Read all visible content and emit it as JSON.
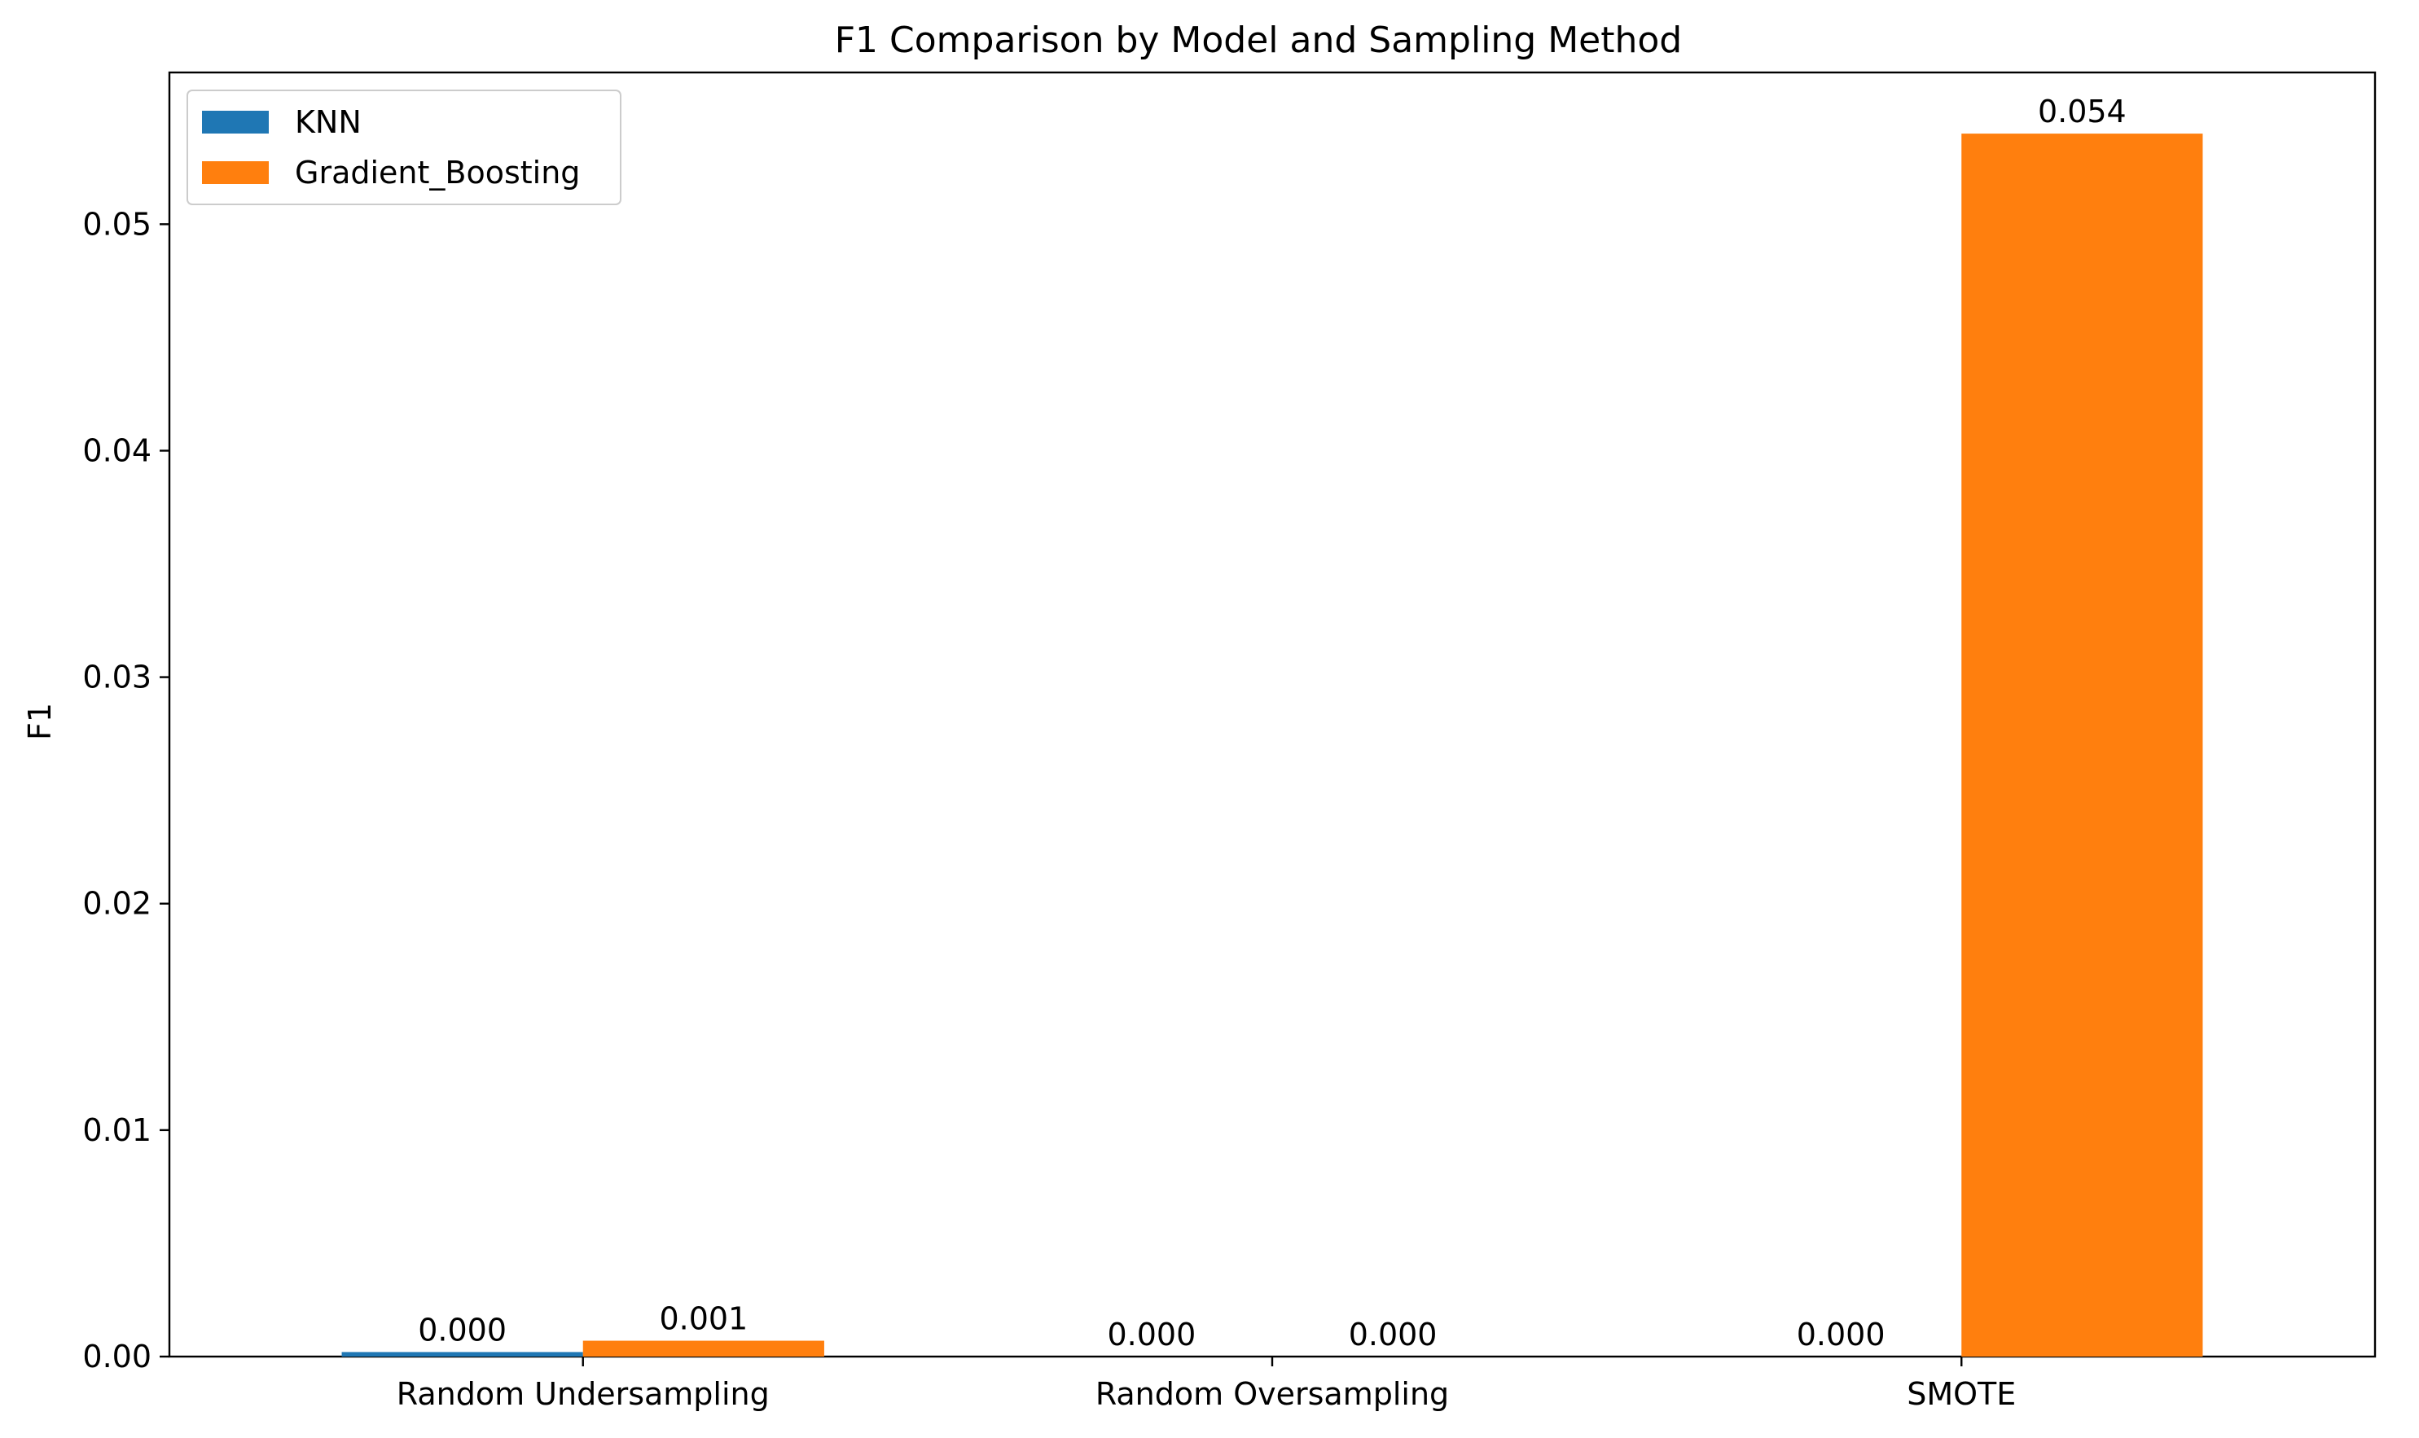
{
  "chart_data": {
    "type": "bar",
    "title": "F1 Comparison by Model and Sampling Method",
    "xlabel": "",
    "ylabel": "F1",
    "categories": [
      "Random Undersampling",
      "Random Oversampling",
      "SMOTE"
    ],
    "series": [
      {
        "name": "KNN",
        "color": "#1f77b4",
        "values": [
          0.0002,
          0.0,
          0.0
        ],
        "labels": [
          "0.000",
          "0.000",
          "0.000"
        ]
      },
      {
        "name": "Gradient_Boosting",
        "color": "#ff7f0e",
        "values": [
          0.0007,
          0.0,
          0.054
        ],
        "labels": [
          "0.001",
          "0.000",
          "0.054"
        ]
      }
    ],
    "ylim": [
      0,
      0.0567
    ],
    "yticks": [
      0.0,
      0.01,
      0.02,
      0.03,
      0.04,
      0.05
    ],
    "ytick_labels": [
      "0.00",
      "0.01",
      "0.02",
      "0.03",
      "0.04",
      "0.05"
    ],
    "grid": false,
    "legend_position": "top-left"
  }
}
